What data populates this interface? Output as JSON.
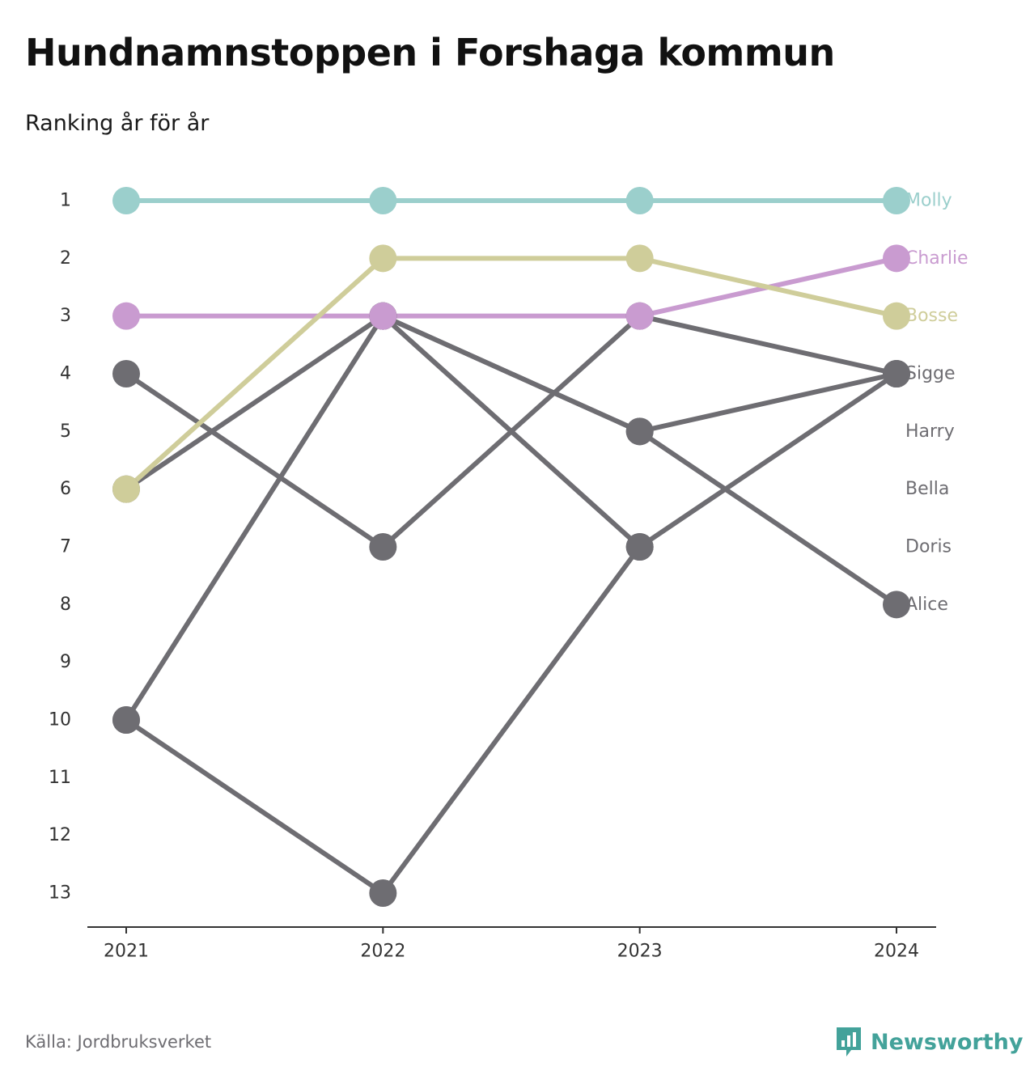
{
  "title": "Hundnamnstoppen i Forshaga kommun",
  "subtitle": "Ranking år för år",
  "source": "Källa: Jordbruksverket",
  "brand": {
    "name": "Newsworthy",
    "icon": "newsworthy-logo-icon",
    "color": "#43a29a"
  },
  "chart_data": {
    "type": "line",
    "title": "Hundnamnstoppen i Forshaga kommun",
    "subtitle": "Ranking år för år",
    "xlabel": "",
    "ylabel": "",
    "x": [
      "2021",
      "2022",
      "2023",
      "2024"
    ],
    "y_ticks": [
      "1",
      "2",
      "3",
      "4",
      "5",
      "6",
      "7",
      "8",
      "9",
      "10",
      "11",
      "12",
      "13"
    ],
    "ylim": [
      1,
      13
    ],
    "y_reversed": true,
    "grid": false,
    "legend": "direct labels at right end",
    "series": [
      {
        "name": "Molly",
        "color": "#9bcfcc",
        "values": [
          1,
          1,
          1,
          1
        ]
      },
      {
        "name": "Charlie",
        "color": "#c99bd0",
        "values": [
          3,
          3,
          3,
          2
        ]
      },
      {
        "name": "Bosse",
        "color": "#cfcd9a",
        "values": [
          6,
          2,
          2,
          3
        ]
      },
      {
        "name": "Sigge",
        "color": "#6e6d72",
        "values": [
          6,
          3,
          5,
          4
        ]
      },
      {
        "name": "Harry",
        "color": "#6e6d72",
        "values": [
          10,
          3,
          7,
          null
        ]
      },
      {
        "name": "Bella",
        "color": "#6e6d72",
        "values": [
          10,
          13,
          7,
          4
        ]
      },
      {
        "name": "Doris",
        "color": "#6e6d72",
        "values": [
          4,
          7,
          3,
          4
        ]
      },
      {
        "name": "Alice",
        "color": "#6e6d72",
        "values": [
          null,
          3,
          5,
          8
        ]
      }
    ]
  }
}
